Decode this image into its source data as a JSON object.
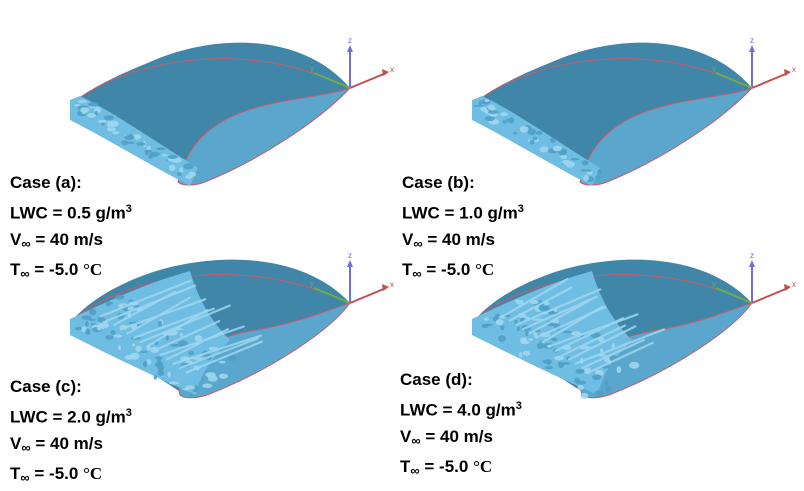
{
  "panels": [
    {
      "case": "Case (a):",
      "lwc_prefix": "LWC = 0.5 g/m",
      "lwc_exp": "3",
      "v_prefix": "V",
      "v_value": " = 40 m/s",
      "t_prefix": "T",
      "t_value": " = -5.0 ",
      "t_unit": "°C",
      "inf": "∞",
      "ice": "light"
    },
    {
      "case": "Case (b):",
      "lwc_prefix": "LWC = 1.0 g/m",
      "lwc_exp": "3",
      "v_prefix": "V",
      "v_value": " = 40 m/s",
      "t_prefix": "T",
      "t_value": " = -5.0 ",
      "t_unit": "°C",
      "inf": "∞",
      "ice": "light"
    },
    {
      "case": "Case (c):",
      "lwc_prefix": "LWC = 2.0 g/m",
      "lwc_exp": "3",
      "v_prefix": "V",
      "v_value": " = 40 m/s",
      "t_prefix": "T",
      "t_value": " = -5.0 ",
      "t_unit": "°C",
      "inf": "∞",
      "ice": "heavy"
    },
    {
      "case": "Case (d):",
      "lwc_prefix": "LWC = 4.0 g/m",
      "lwc_exp": "3",
      "v_prefix": "V",
      "v_value": " = 40 m/s",
      "t_prefix": "T",
      "t_value": " = -5.0 ",
      "t_unit": "°C",
      "inf": "∞",
      "ice": "heavy"
    }
  ],
  "axes": {
    "x": "x",
    "y": "y",
    "z": "z"
  },
  "colors": {
    "surface_top": "#3f86a8",
    "surface_face": "#5aa6cc",
    "ice_light": "#9fd6f0",
    "ice_mid": "#6fbde2",
    "outline": "#c95b6a",
    "axis_x": "#c0504d",
    "axis_y": "#70ad47",
    "axis_z": "#6f6fd8"
  }
}
